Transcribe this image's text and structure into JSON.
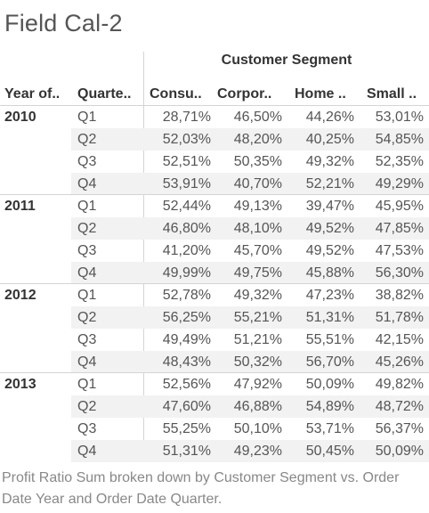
{
  "sheet": {
    "title": "Field Cal-2",
    "caption": "Profit Ratio Sum broken down by Customer Segment vs. Order Date Year and Order Date Quarter."
  },
  "table": {
    "column_group_title": "Customer Segment",
    "row_headers": [
      "Year of..",
      "Quarte.."
    ],
    "columns": [
      "Consu..",
      "Corpor..",
      "Home ..",
      "Small .."
    ],
    "years": [
      {
        "year": "2010",
        "quarters": [
          {
            "quarter": "Q1",
            "values": [
              "28,71%",
              "46,50%",
              "44,26%",
              "53,01%"
            ]
          },
          {
            "quarter": "Q2",
            "values": [
              "52,03%",
              "48,20%",
              "40,25%",
              "54,85%"
            ]
          },
          {
            "quarter": "Q3",
            "values": [
              "52,51%",
              "50,35%",
              "49,32%",
              "52,35%"
            ]
          },
          {
            "quarter": "Q4",
            "values": [
              "53,91%",
              "40,70%",
              "52,21%",
              "49,29%"
            ]
          }
        ]
      },
      {
        "year": "2011",
        "quarters": [
          {
            "quarter": "Q1",
            "values": [
              "52,44%",
              "49,13%",
              "39,47%",
              "45,95%"
            ]
          },
          {
            "quarter": "Q2",
            "values": [
              "46,80%",
              "48,10%",
              "49,52%",
              "47,85%"
            ]
          },
          {
            "quarter": "Q3",
            "values": [
              "41,20%",
              "45,70%",
              "49,52%",
              "47,53%"
            ]
          },
          {
            "quarter": "Q4",
            "values": [
              "49,99%",
              "49,75%",
              "45,88%",
              "56,30%"
            ]
          }
        ]
      },
      {
        "year": "2012",
        "quarters": [
          {
            "quarter": "Q1",
            "values": [
              "52,78%",
              "49,32%",
              "47,23%",
              "38,82%"
            ]
          },
          {
            "quarter": "Q2",
            "values": [
              "56,25%",
              "55,21%",
              "51,31%",
              "51,78%"
            ]
          },
          {
            "quarter": "Q3",
            "values": [
              "49,49%",
              "51,21%",
              "55,51%",
              "42,15%"
            ]
          },
          {
            "quarter": "Q4",
            "values": [
              "48,43%",
              "50,32%",
              "56,70%",
              "45,26%"
            ]
          }
        ]
      },
      {
        "year": "2013",
        "quarters": [
          {
            "quarter": "Q1",
            "values": [
              "52,56%",
              "47,92%",
              "50,09%",
              "49,82%"
            ]
          },
          {
            "quarter": "Q2",
            "values": [
              "47,60%",
              "46,88%",
              "54,89%",
              "48,72%"
            ]
          },
          {
            "quarter": "Q3",
            "values": [
              "55,25%",
              "50,10%",
              "53,71%",
              "56,37%"
            ]
          },
          {
            "quarter": "Q4",
            "values": [
              "51,31%",
              "49,23%",
              "50,45%",
              "50,09%"
            ]
          }
        ]
      }
    ]
  }
}
